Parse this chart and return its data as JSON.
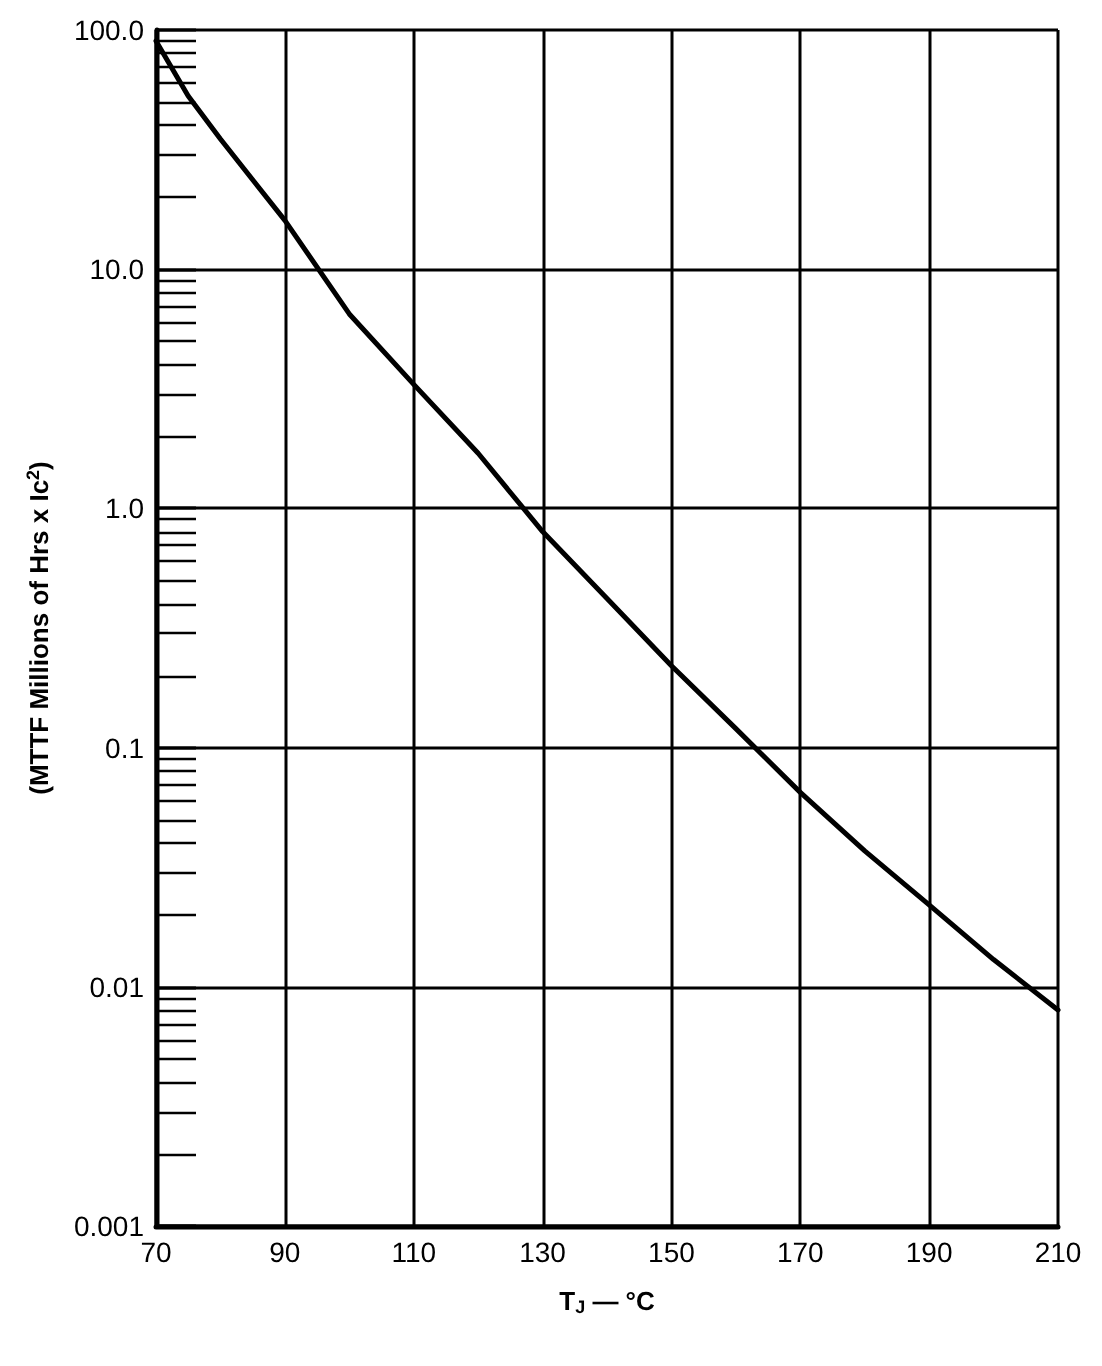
{
  "chart_data": {
    "type": "line",
    "xlabel": "T$_{J}$ — °C",
    "ylabel": "(MTTF Millions of Hrs x Ic$^{2}$)",
    "x": [
      70,
      75,
      80,
      90,
      100,
      110,
      120,
      130,
      140,
      150,
      160,
      170,
      180,
      190,
      200,
      210
    ],
    "series": [
      {
        "color": "#000000",
        "values": [
          90,
          53,
          35,
          16,
          6.5,
          3.3,
          1.7,
          0.8,
          0.42,
          0.22,
          0.12,
          0.065,
          0.037,
          0.022,
          0.013,
          0.008
        ]
      }
    ],
    "xlim": [
      70,
      210
    ],
    "xticks": [
      70,
      90,
      110,
      130,
      150,
      170,
      190,
      210
    ],
    "ylim": [
      0.001,
      100
    ],
    "yticks": [
      {
        "value": 0.001,
        "label": "0.001"
      },
      {
        "value": 0.01,
        "label": "0.01"
      },
      {
        "value": 0.1,
        "label": "0.1"
      },
      {
        "value": 1,
        "label": "1.0"
      },
      {
        "value": 10,
        "label": "10.0"
      },
      {
        "value": 100,
        "label": "100.0"
      }
    ],
    "log": "y",
    "grid": true,
    "marker": "none",
    "line_style": "solid"
  }
}
